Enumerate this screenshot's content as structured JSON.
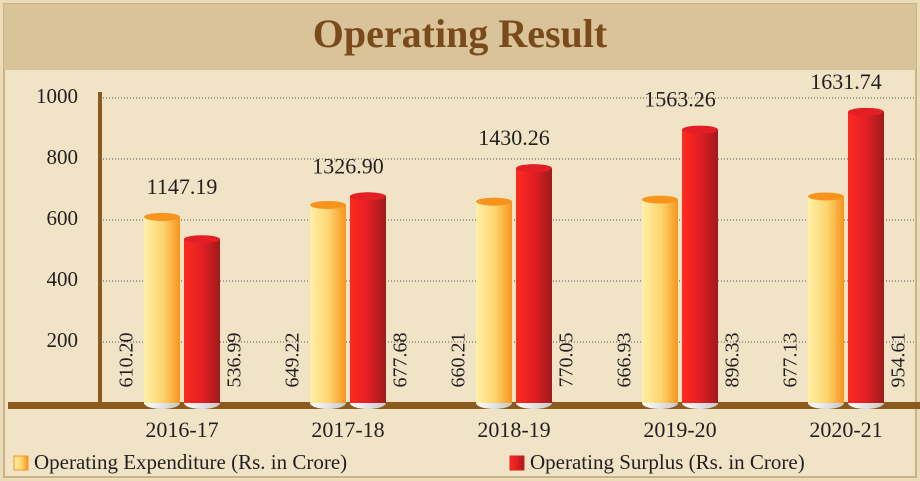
{
  "chart_data": {
    "type": "bar",
    "title": "Operating Result",
    "categories": [
      "2016-17",
      "2017-18",
      "2018-19",
      "2019-20",
      "2020-21"
    ],
    "series": [
      {
        "name": "Operating Expenditure (Rs. in Crore)",
        "color": "#f7941d",
        "values": [
          610.2,
          649.22,
          660.21,
          666.93,
          677.13
        ],
        "value_labels": [
          "610.20",
          "649.22",
          "660.21",
          "666.93",
          "677.13"
        ]
      },
      {
        "name": "Operating Surplus (Rs. in Crore)",
        "color": "#e31e24",
        "values": [
          536.99,
          677.68,
          770.05,
          896.33,
          954.61
        ],
        "value_labels": [
          "536.99",
          "677.68",
          "770.05",
          "896.33",
          "954.61"
        ]
      }
    ],
    "annotations": [
      "1147.19",
      "1326.90",
      "1430.26",
      "1563.26",
      "1631.74"
    ],
    "ylim": [
      0,
      1000
    ],
    "yticks": [
      200,
      400,
      600,
      800,
      1000
    ],
    "grid": true
  }
}
